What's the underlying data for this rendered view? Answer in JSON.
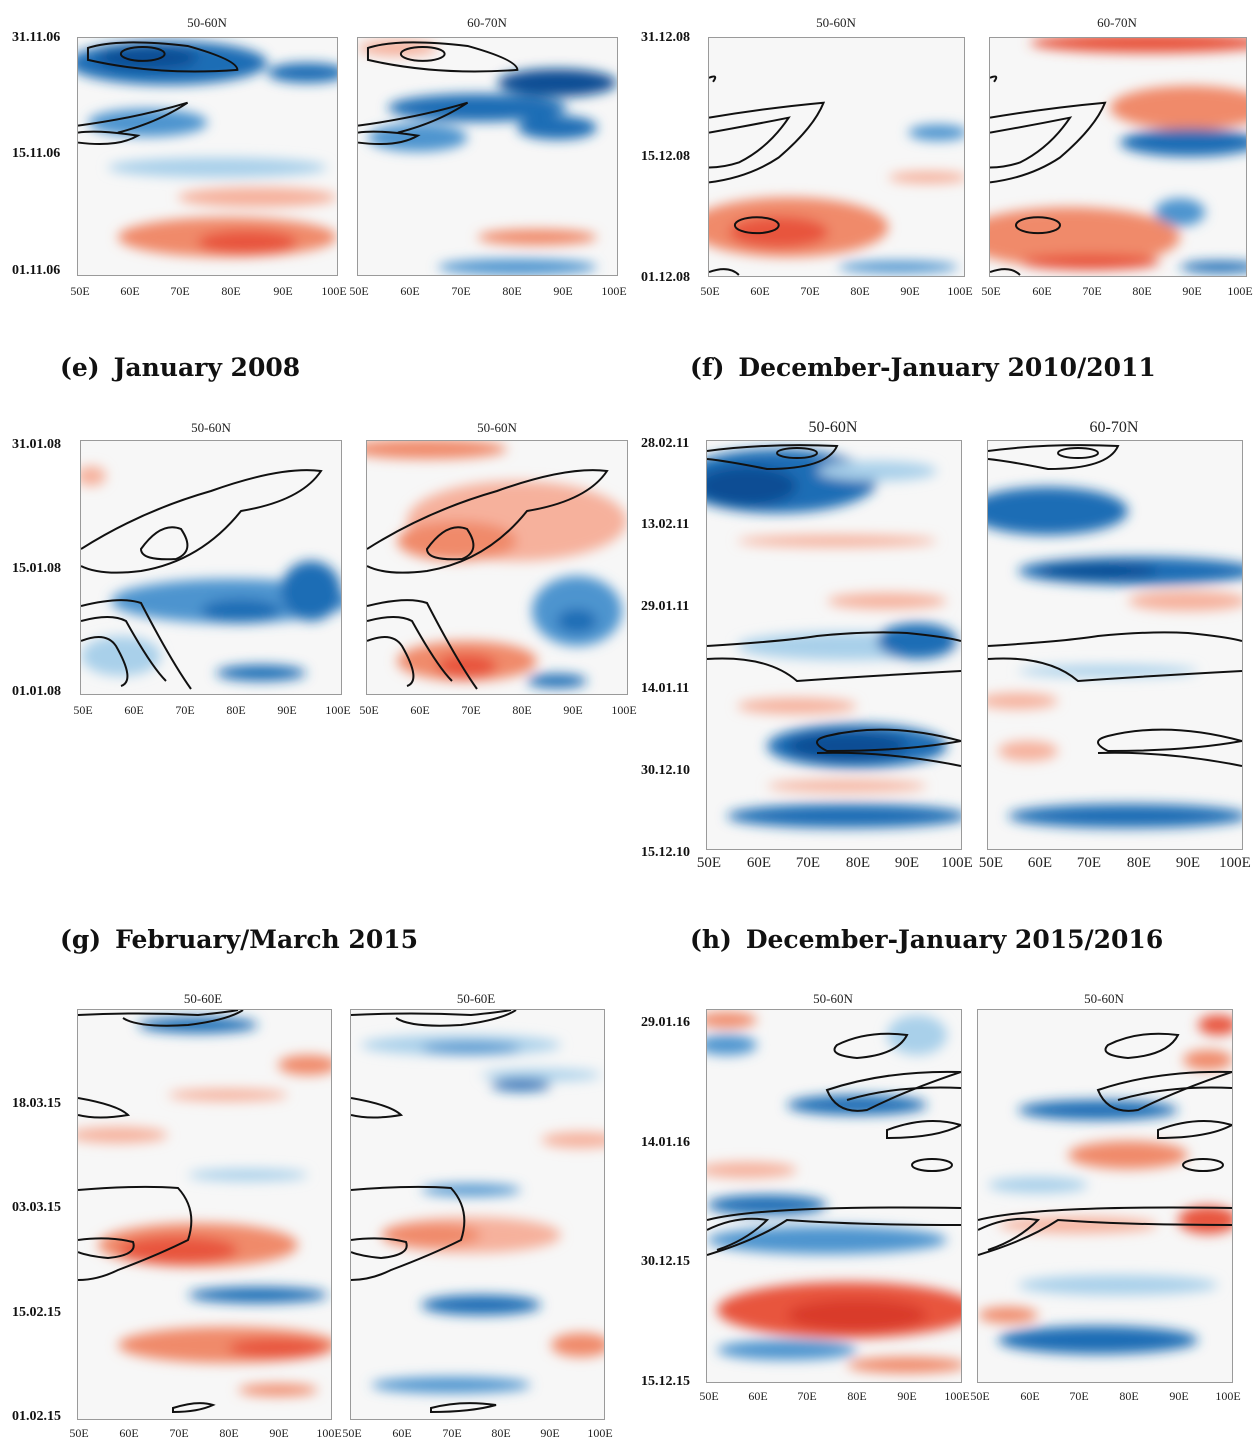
{
  "colors": {
    "warm": "#e8553c",
    "warm_light": "#f6b19c",
    "cool": "#1f6db5",
    "cool_dark": "#0b4d94",
    "cool_light": "#a9d0ea",
    "contour": "#111111"
  },
  "captions": {
    "e": {
      "letter": "(e)",
      "text": "January 2008"
    },
    "f": {
      "letter": "(f)",
      "text": "December-January 2010/2011"
    },
    "g": {
      "letter": "(g)",
      "text": "February/March 2015"
    },
    "h": {
      "letter": "(h)",
      "text": "December-January 2015/2016"
    }
  },
  "xticks": [
    "50E",
    "60E",
    "70E",
    "80E",
    "90E",
    "100E"
  ],
  "rows": {
    "c": {
      "title_left": "50-60N",
      "title_right": "60-70N",
      "y_labels": [
        "31.11.06",
        "15.11.06",
        "01.11.06"
      ]
    },
    "d": {
      "title_left": "50-60N",
      "title_right": "60-70N",
      "y_labels": [
        "31.12.08",
        "15.12.08",
        "01.12.08"
      ]
    },
    "e": {
      "title_left": "50-60N",
      "title_right": "50-60N",
      "y_labels": [
        "31.01.08",
        "15.01.08",
        "01.01.08"
      ]
    },
    "f": {
      "title_left": "50-60N",
      "title_right": "60-70N",
      "y_labels": [
        "28.02.11",
        "13.02.11",
        "29.01.11",
        "14.01.11",
        "30.12.10",
        "15.12.10"
      ]
    },
    "g": {
      "title_left": "50-60E",
      "title_right": "50-60E",
      "y_labels": [
        "18.03.15",
        "03.03.15",
        "15.02.15",
        "01.02.15"
      ]
    },
    "h": {
      "title_left": "50-60N",
      "title_right": "50-60N",
      "y_labels": [
        "29.01.16",
        "14.01.16",
        "30.12.15",
        "15.12.15"
      ]
    }
  }
}
